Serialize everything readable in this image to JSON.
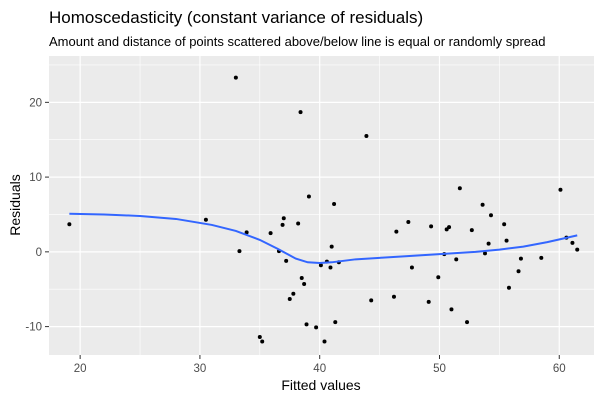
{
  "chart_data": {
    "type": "scatter",
    "title": "Homoscedasticity (constant variance of residuals)",
    "subtitle": "Amount and distance of points scattered above/below line is equal or randomly spread",
    "xlabel": "Fitted values",
    "ylabel": "Residuals",
    "xlim": [
      17.4,
      62.9
    ],
    "ylim": [
      -13.8,
      26.2
    ],
    "xticks": [
      20,
      30,
      40,
      50,
      60
    ],
    "yticks": [
      -10,
      0,
      10,
      20
    ],
    "grid": true,
    "colors": {
      "panel": "#ebebeb",
      "grid_major": "#ffffff",
      "points": "#000000",
      "smooth_line": "#3366ff"
    },
    "points": [
      [
        19.1,
        3.7
      ],
      [
        30.5,
        4.3
      ],
      [
        33.0,
        23.3
      ],
      [
        33.3,
        0.1
      ],
      [
        33.9,
        2.6
      ],
      [
        35.0,
        -11.4
      ],
      [
        35.2,
        -12.0
      ],
      [
        35.9,
        2.5
      ],
      [
        36.6,
        0.1
      ],
      [
        36.9,
        3.6
      ],
      [
        37.0,
        4.5
      ],
      [
        37.2,
        -1.2
      ],
      [
        37.5,
        -6.3
      ],
      [
        37.8,
        -5.6
      ],
      [
        38.2,
        3.8
      ],
      [
        38.4,
        18.7
      ],
      [
        38.5,
        -3.5
      ],
      [
        38.7,
        -4.3
      ],
      [
        38.9,
        -9.7
      ],
      [
        39.1,
        7.4
      ],
      [
        39.7,
        -10.1
      ],
      [
        40.1,
        -1.8
      ],
      [
        40.4,
        -12.0
      ],
      [
        40.6,
        -1.3
      ],
      [
        40.9,
        -2.1
      ],
      [
        41.0,
        0.7
      ],
      [
        41.2,
        6.4
      ],
      [
        41.3,
        -9.4
      ],
      [
        41.6,
        -1.4
      ],
      [
        43.9,
        15.5
      ],
      [
        44.3,
        -6.5
      ],
      [
        46.2,
        -6.0
      ],
      [
        46.4,
        2.7
      ],
      [
        47.4,
        4.0
      ],
      [
        47.7,
        -2.1
      ],
      [
        49.1,
        -6.7
      ],
      [
        49.3,
        3.4
      ],
      [
        49.9,
        -3.4
      ],
      [
        50.4,
        -0.3
      ],
      [
        50.6,
        3.0
      ],
      [
        50.8,
        3.3
      ],
      [
        51.0,
        -7.7
      ],
      [
        51.4,
        -1.0
      ],
      [
        51.7,
        8.5
      ],
      [
        52.3,
        -9.4
      ],
      [
        52.7,
        2.9
      ],
      [
        53.6,
        6.3
      ],
      [
        53.8,
        -0.2
      ],
      [
        54.1,
        1.1
      ],
      [
        54.3,
        4.9
      ],
      [
        55.4,
        3.7
      ],
      [
        55.6,
        1.5
      ],
      [
        55.8,
        -4.8
      ],
      [
        56.6,
        -2.6
      ],
      [
        56.8,
        -0.9
      ],
      [
        58.5,
        -0.8
      ],
      [
        60.1,
        8.3
      ],
      [
        60.6,
        1.9
      ],
      [
        61.1,
        1.2
      ],
      [
        61.5,
        0.3
      ]
    ],
    "smooth_line": [
      [
        19.1,
        5.1
      ],
      [
        22.0,
        5.0
      ],
      [
        25.0,
        4.8
      ],
      [
        28.0,
        4.4
      ],
      [
        31.0,
        3.6
      ],
      [
        33.0,
        2.8
      ],
      [
        35.0,
        1.6
      ],
      [
        36.5,
        0.4
      ],
      [
        38.0,
        -0.9
      ],
      [
        39.0,
        -1.4
      ],
      [
        40.0,
        -1.5
      ],
      [
        41.0,
        -1.4
      ],
      [
        43.0,
        -1.0
      ],
      [
        45.0,
        -0.8
      ],
      [
        47.0,
        -0.6
      ],
      [
        49.0,
        -0.4
      ],
      [
        51.0,
        -0.2
      ],
      [
        53.0,
        0.0
      ],
      [
        55.0,
        0.3
      ],
      [
        57.0,
        0.7
      ],
      [
        59.0,
        1.3
      ],
      [
        61.5,
        2.2
      ]
    ]
  }
}
